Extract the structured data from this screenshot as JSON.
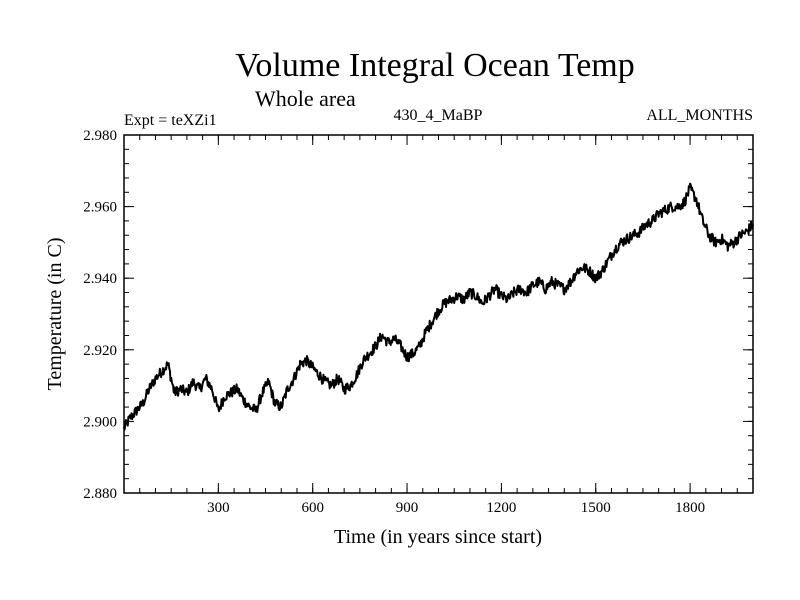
{
  "chart_data": {
    "type": "line",
    "title": "Volume Integral Ocean Temp",
    "subtitle": "Whole area",
    "header_left": "Expt = teXZi1",
    "header_center": "430_4_MaBP",
    "header_right": "ALL_MONTHS",
    "xlabel": "Time (in years since start)",
    "ylabel": "Temperature (in C)",
    "xlim": [
      0,
      2000
    ],
    "ylim": [
      2.88,
      2.98
    ],
    "xticks": [
      300,
      600,
      900,
      1200,
      1500,
      1800
    ],
    "xtick_labels": [
      "300",
      "600",
      "900",
      "1200",
      "1500",
      "1800"
    ],
    "yticks": [
      2.88,
      2.9,
      2.92,
      2.94,
      2.96,
      2.98
    ],
    "ytick_labels": [
      "2.880",
      "2.900",
      "2.920",
      "2.940",
      "2.960",
      "2.980"
    ],
    "x_minor_step": 50,
    "y_minor_step": 0.004,
    "grid": false,
    "line_color": "#000000",
    "series": [
      {
        "name": "Volume integral ocean temperature",
        "x": [
          0,
          20,
          40,
          60,
          80,
          100,
          120,
          140,
          160,
          180,
          200,
          220,
          240,
          260,
          280,
          300,
          320,
          340,
          360,
          380,
          400,
          420,
          440,
          460,
          480,
          500,
          520,
          540,
          560,
          580,
          600,
          620,
          640,
          660,
          680,
          700,
          720,
          740,
          760,
          780,
          800,
          820,
          840,
          860,
          880,
          900,
          920,
          940,
          960,
          980,
          1000,
          1020,
          1040,
          1060,
          1080,
          1100,
          1120,
          1140,
          1160,
          1180,
          1200,
          1220,
          1240,
          1260,
          1280,
          1300,
          1320,
          1340,
          1360,
          1380,
          1400,
          1420,
          1440,
          1460,
          1480,
          1500,
          1520,
          1540,
          1560,
          1580,
          1600,
          1620,
          1640,
          1660,
          1680,
          1700,
          1720,
          1740,
          1760,
          1780,
          1800,
          1820,
          1840,
          1860,
          1880,
          1900,
          1920,
          1940,
          1960,
          1980,
          2000
        ],
        "values": [
          2.898,
          2.901,
          2.903,
          2.905,
          2.909,
          2.912,
          2.914,
          2.916,
          2.908,
          2.909,
          2.908,
          2.911,
          2.909,
          2.912,
          2.909,
          2.903,
          2.907,
          2.908,
          2.909,
          2.906,
          2.904,
          2.903,
          2.908,
          2.911,
          2.905,
          2.904,
          2.909,
          2.912,
          2.916,
          2.917,
          2.915,
          2.913,
          2.911,
          2.91,
          2.912,
          2.909,
          2.91,
          2.913,
          2.917,
          2.919,
          2.921,
          2.924,
          2.922,
          2.923,
          2.921,
          2.918,
          2.919,
          2.921,
          2.925,
          2.928,
          2.931,
          2.933,
          2.934,
          2.935,
          2.934,
          2.936,
          2.935,
          2.933,
          2.935,
          2.937,
          2.935,
          2.934,
          2.936,
          2.937,
          2.936,
          2.938,
          2.939,
          2.937,
          2.939,
          2.938,
          2.937,
          2.939,
          2.942,
          2.943,
          2.942,
          2.94,
          2.942,
          2.945,
          2.948,
          2.95,
          2.951,
          2.952,
          2.953,
          2.955,
          2.956,
          2.958,
          2.959,
          2.96,
          2.96,
          2.961,
          2.965,
          2.962,
          2.956,
          2.952,
          2.95,
          2.951,
          2.949,
          2.95,
          2.952,
          2.953,
          2.955
        ]
      }
    ]
  }
}
